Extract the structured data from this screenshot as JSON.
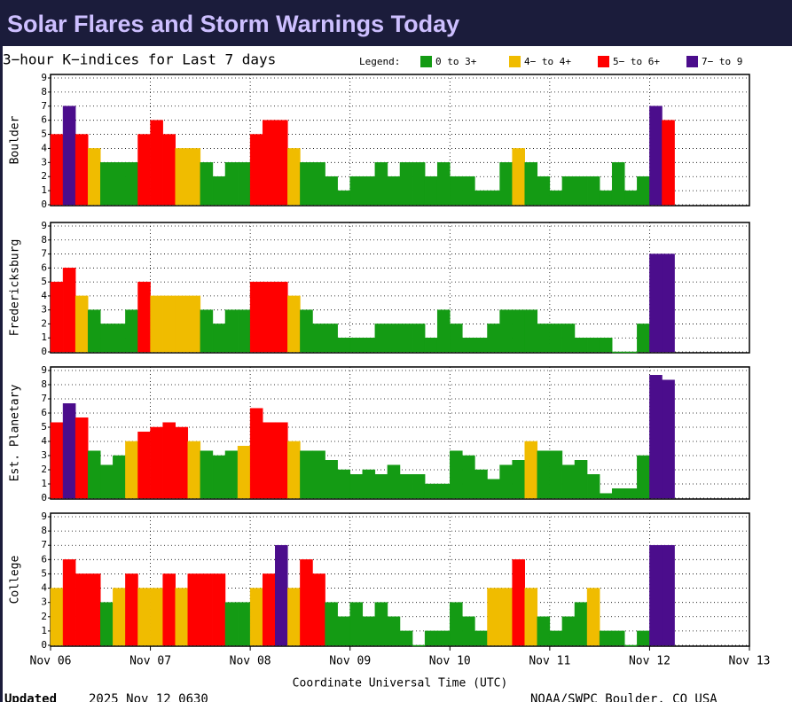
{
  "page_title": "Solar Flares and Storm Warnings Today",
  "header": "3−hour K−indices for Last 7 days",
  "legend": {
    "title": "Legend:",
    "items": [
      {
        "label": "0 to 3+",
        "color": "#149b14"
      },
      {
        "label": "4− to 4+",
        "color": "#f0bc00"
      },
      {
        "label": "5− to 6+",
        "color": "#ff0000"
      },
      {
        "label": "7− to 9",
        "color": "#4b0d8c"
      }
    ]
  },
  "x_axis": {
    "ticks": [
      "Nov 06",
      "Nov 07",
      "Nov 08",
      "Nov 09",
      "Nov 10",
      "Nov 11",
      "Nov 12",
      "Nov 13"
    ],
    "label": "Coordinate Universal Time (UTC)"
  },
  "footer": {
    "updated_label": "Updated",
    "updated": "2025 Nov 12 0630",
    "source": "NOAA/SWPC Boulder, CO USA"
  },
  "chart_data": [
    {
      "type": "bar",
      "ylabel": "Boulder",
      "ylim": [
        0,
        9
      ],
      "yticks": [
        0,
        1,
        2,
        3,
        4,
        5,
        6,
        7,
        8,
        9
      ],
      "grid": true,
      "values": [
        5,
        7,
        5,
        4,
        3,
        3,
        3,
        5,
        6,
        5,
        4,
        4,
        3,
        2,
        3,
        3,
        5,
        6,
        6,
        4,
        3,
        3,
        2,
        1,
        2,
        2,
        3,
        2,
        3,
        3,
        2,
        3,
        2,
        2,
        1,
        1,
        3,
        4,
        3,
        2,
        1,
        2,
        2,
        2,
        1,
        3,
        1,
        2,
        7,
        6,
        null,
        null,
        null,
        null,
        null,
        null
      ],
      "colors": [
        "#ff0000",
        "#4b0d8c",
        "#ff0000",
        "#f0bc00",
        "#149b14",
        "#149b14",
        "#149b14",
        "#ff0000",
        "#ff0000",
        "#ff0000",
        "#f0bc00",
        "#f0bc00",
        "#149b14",
        "#149b14",
        "#149b14",
        "#149b14",
        "#ff0000",
        "#ff0000",
        "#ff0000",
        "#f0bc00",
        "#149b14",
        "#149b14",
        "#149b14",
        "#149b14",
        "#149b14",
        "#149b14",
        "#149b14",
        "#149b14",
        "#149b14",
        "#149b14",
        "#149b14",
        "#149b14",
        "#149b14",
        "#149b14",
        "#149b14",
        "#149b14",
        "#149b14",
        "#f0bc00",
        "#149b14",
        "#149b14",
        "#149b14",
        "#149b14",
        "#149b14",
        "#149b14",
        "#149b14",
        "#149b14",
        "#149b14",
        "#149b14",
        "#4b0d8c",
        "#ff0000",
        null,
        null,
        null,
        null,
        null,
        null
      ]
    },
    {
      "type": "bar",
      "ylabel": "Fredericksburg",
      "ylim": [
        0,
        9
      ],
      "yticks": [
        0,
        1,
        2,
        3,
        4,
        5,
        6,
        7,
        8,
        9
      ],
      "grid": true,
      "values": [
        5,
        6,
        4,
        3,
        2,
        2,
        3,
        5,
        4,
        4,
        4,
        4,
        3,
        2,
        3,
        3,
        5,
        5,
        5,
        4,
        3,
        2,
        2,
        1,
        1,
        1,
        2,
        2,
        2,
        2,
        1,
        3,
        2,
        1,
        1,
        2,
        3,
        3,
        3,
        2,
        2,
        2,
        1,
        1,
        1,
        0,
        0,
        2,
        7,
        7,
        null,
        null,
        null,
        null,
        null,
        null
      ],
      "colors": [
        "#ff0000",
        "#ff0000",
        "#f0bc00",
        "#149b14",
        "#149b14",
        "#149b14",
        "#149b14",
        "#ff0000",
        "#f0bc00",
        "#f0bc00",
        "#f0bc00",
        "#f0bc00",
        "#149b14",
        "#149b14",
        "#149b14",
        "#149b14",
        "#ff0000",
        "#ff0000",
        "#ff0000",
        "#f0bc00",
        "#149b14",
        "#149b14",
        "#149b14",
        "#149b14",
        "#149b14",
        "#149b14",
        "#149b14",
        "#149b14",
        "#149b14",
        "#149b14",
        "#149b14",
        "#149b14",
        "#149b14",
        "#149b14",
        "#149b14",
        "#149b14",
        "#149b14",
        "#149b14",
        "#149b14",
        "#149b14",
        "#149b14",
        "#149b14",
        "#149b14",
        "#149b14",
        "#149b14",
        "#149b14",
        "#149b14",
        "#149b14",
        "#4b0d8c",
        "#4b0d8c",
        null,
        null,
        null,
        null,
        null,
        null
      ]
    },
    {
      "type": "bar",
      "ylabel": "Est. Planetary",
      "ylim": [
        0,
        9
      ],
      "yticks": [
        0,
        1,
        2,
        3,
        4,
        5,
        6,
        7,
        8,
        9
      ],
      "grid": true,
      "values": [
        5.33,
        6.67,
        5.67,
        3.33,
        2.33,
        3,
        4,
        4.67,
        5,
        5.33,
        5,
        4,
        3.33,
        3,
        3.33,
        3.67,
        6.33,
        5.33,
        5.33,
        4,
        3.33,
        3.33,
        2.67,
        2,
        1.67,
        2,
        1.67,
        2.33,
        1.67,
        1.67,
        1,
        1,
        3.33,
        3,
        2,
        1.33,
        2.33,
        2.67,
        4,
        3.33,
        3.33,
        2.33,
        2.67,
        1.67,
        0.33,
        0.67,
        0.67,
        3,
        8.67,
        8.33,
        null,
        null,
        null,
        null,
        null,
        null
      ],
      "colors": [
        "#ff0000",
        "#4b0d8c",
        "#ff0000",
        "#149b14",
        "#149b14",
        "#149b14",
        "#f0bc00",
        "#ff0000",
        "#ff0000",
        "#ff0000",
        "#ff0000",
        "#f0bc00",
        "#149b14",
        "#149b14",
        "#149b14",
        "#f0bc00",
        "#ff0000",
        "#ff0000",
        "#ff0000",
        "#f0bc00",
        "#149b14",
        "#149b14",
        "#149b14",
        "#149b14",
        "#149b14",
        "#149b14",
        "#149b14",
        "#149b14",
        "#149b14",
        "#149b14",
        "#149b14",
        "#149b14",
        "#149b14",
        "#149b14",
        "#149b14",
        "#149b14",
        "#149b14",
        "#149b14",
        "#f0bc00",
        "#149b14",
        "#149b14",
        "#149b14",
        "#149b14",
        "#149b14",
        "#149b14",
        "#149b14",
        "#149b14",
        "#149b14",
        "#4b0d8c",
        "#4b0d8c",
        null,
        null,
        null,
        null,
        null,
        null
      ]
    },
    {
      "type": "bar",
      "ylabel": "College",
      "ylim": [
        0,
        9
      ],
      "yticks": [
        0,
        1,
        2,
        3,
        4,
        5,
        6,
        7,
        8,
        9
      ],
      "grid": true,
      "values": [
        4,
        6,
        5,
        5,
        3,
        4,
        5,
        4,
        4,
        5,
        4,
        5,
        5,
        5,
        3,
        3,
        4,
        5,
        7,
        4,
        6,
        5,
        3,
        2,
        3,
        2,
        3,
        2,
        1,
        0,
        1,
        1,
        3,
        2,
        1,
        4,
        4,
        6,
        4,
        2,
        1,
        2,
        3,
        4,
        1,
        1,
        0,
        1,
        7,
        7,
        null,
        null,
        null,
        null,
        null,
        null
      ],
      "colors": [
        "#f0bc00",
        "#ff0000",
        "#ff0000",
        "#ff0000",
        "#149b14",
        "#f0bc00",
        "#ff0000",
        "#f0bc00",
        "#f0bc00",
        "#ff0000",
        "#f0bc00",
        "#ff0000",
        "#ff0000",
        "#ff0000",
        "#149b14",
        "#149b14",
        "#f0bc00",
        "#ff0000",
        "#4b0d8c",
        "#f0bc00",
        "#ff0000",
        "#ff0000",
        "#149b14",
        "#149b14",
        "#149b14",
        "#149b14",
        "#149b14",
        "#149b14",
        "#149b14",
        "#149b14",
        "#149b14",
        "#149b14",
        "#149b14",
        "#149b14",
        "#149b14",
        "#f0bc00",
        "#f0bc00",
        "#ff0000",
        "#f0bc00",
        "#149b14",
        "#149b14",
        "#149b14",
        "#149b14",
        "#f0bc00",
        "#149b14",
        "#149b14",
        "#149b14",
        "#149b14",
        "#4b0d8c",
        "#4b0d8c",
        null,
        null,
        null,
        null,
        null,
        null
      ]
    }
  ]
}
